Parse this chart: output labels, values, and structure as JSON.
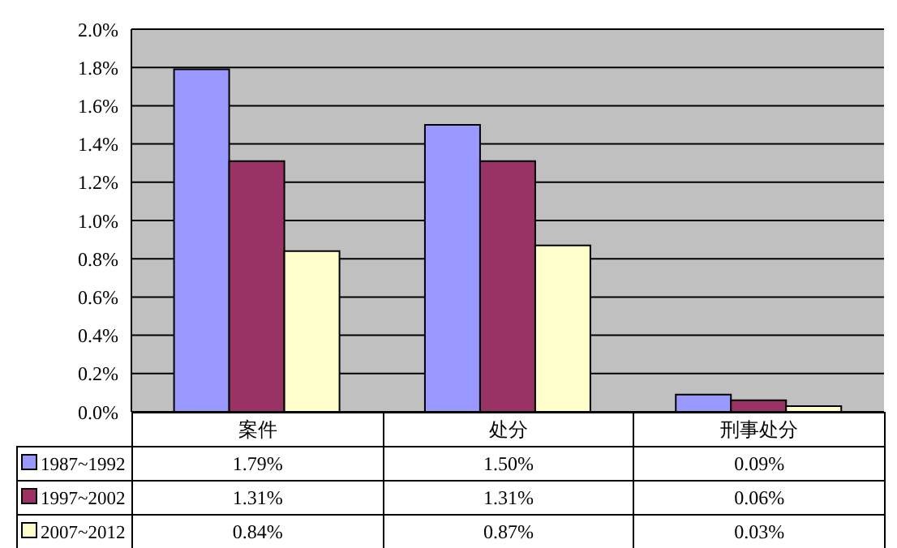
{
  "chart_data": {
    "type": "bar",
    "categories": [
      "案件",
      "处分",
      "刑事处分"
    ],
    "series": [
      {
        "name": "1987~1992",
        "color": "#9999ff",
        "values": [
          1.79,
          1.5,
          0.09
        ],
        "value_labels": [
          "1.79%",
          "1.50%",
          "0.09%"
        ]
      },
      {
        "name": "1997~2002",
        "color": "#993366",
        "values": [
          1.31,
          1.31,
          0.06
        ],
        "value_labels": [
          "1.31%",
          "1.31%",
          "0.06%"
        ]
      },
      {
        "name": "2007~2012",
        "color": "#ffffcc",
        "values": [
          0.84,
          0.87,
          0.03
        ],
        "value_labels": [
          "0.84%",
          "0.87%",
          "0.03%"
        ]
      }
    ],
    "ylim": [
      0,
      2
    ],
    "yticks": [
      {
        "value": 0,
        "label": "0.0%"
      },
      {
        "value": 0.2,
        "label": "0.2%"
      },
      {
        "value": 0.4,
        "label": "0.4%"
      },
      {
        "value": 0.6,
        "label": "0.6%"
      },
      {
        "value": 0.8,
        "label": "0.8%"
      },
      {
        "value": 1,
        "label": "1.0%"
      },
      {
        "value": 1.2,
        "label": "1.2%"
      },
      {
        "value": 1.4,
        "label": "1.4%"
      },
      {
        "value": 1.6,
        "label": "1.6%"
      },
      {
        "value": 1.8,
        "label": "1.8%"
      },
      {
        "value": 2,
        "label": "2.0%"
      }
    ],
    "grid": "y",
    "legend": "bottom"
  }
}
